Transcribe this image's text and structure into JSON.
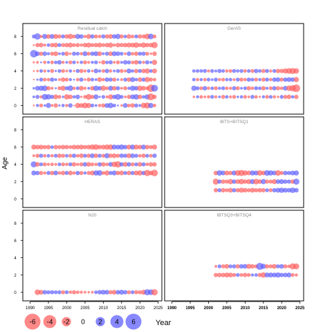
{
  "chart_data": {
    "type": "scatter",
    "ylabel": "Age",
    "xlabel": "Year",
    "xlim": [
      1988,
      2026
    ],
    "ylim": [
      -1,
      9.5
    ],
    "x_ticks": [
      "1990",
      "1995",
      "2000",
      "2005",
      "2010",
      "2015",
      "2020",
      "2025"
    ],
    "y_ticks": [
      "0",
      "2",
      "4",
      "6",
      "8"
    ],
    "colors": {
      "positive": "#5a5aff",
      "negative": "#ff5a5a"
    },
    "legend": {
      "placement": "bottom-left",
      "items": [
        {
          "label": "-6",
          "value": -6
        },
        {
          "label": "-4",
          "value": -4
        },
        {
          "label": "-2",
          "value": -2
        },
        {
          "label": "0",
          "value": 0
        },
        {
          "label": "2",
          "value": 2
        },
        {
          "label": "4",
          "value": 4
        },
        {
          "label": "6",
          "value": 6
        }
      ]
    },
    "panels": [
      {
        "title": "Residual catch",
        "years": [
          1991,
          2024
        ],
        "ages": [
          0,
          1,
          2,
          3,
          4,
          5,
          6,
          7,
          8
        ],
        "residuals": {
          "0": [
            -0.3,
            0.8,
            -1.2,
            0.5,
            2.1,
            -0.6,
            -1.5,
            0.4,
            0.9,
            -0.8,
            1.6,
            -0.2,
            -2.2,
            -1.8,
            -2.6,
            -2.0,
            1.2,
            0.6,
            -0.9,
            -1.4,
            1.8,
            2.4,
            1.1,
            0.3,
            -0.5,
            1.9,
            -1.1,
            -1.6,
            1.3,
            0.7,
            -2.4,
            -3.0,
            2.2,
            -1.0
          ],
          "1": [
            0.6,
            1.3,
            -0.8,
            2.9,
            2.3,
            1.4,
            -1.9,
            -1.2,
            0.5,
            -2.3,
            -1.6,
            0.9,
            1.7,
            -0.4,
            -1.1,
            -2.6,
            -1.3,
            2.0,
            0.4,
            1.1,
            -0.7,
            -2.1,
            1.5,
            2.7,
            1.2,
            -0.6,
            -1.4,
            1.9,
            2.4,
            -1.7,
            1.0,
            2.1,
            -3.8,
            -1.5
          ],
          "2": [
            0.5,
            1.8,
            2.1,
            2.6,
            -1.4,
            -0.7,
            0.3,
            -1.2,
            -2.1,
            1.3,
            2.5,
            -0.9,
            1.1,
            -1.8,
            -0.8,
            0.6,
            -1.6,
            2.3,
            1.5,
            -2.2,
            -1.0,
            2.0,
            -1.7,
            1.4,
            -0.6,
            -1.3,
            0.8,
            2.2,
            1.7,
            -2.3,
            -1.8,
            -1.1,
            -4.4,
            3.8
          ],
          "3": [
            -0.2,
            0.4,
            1.2,
            -1.1,
            -0.9,
            1.5,
            0.7,
            -0.6,
            -1.6,
            -1.2,
            0.8,
            0.3,
            -1.0,
            1.4,
            -0.5,
            -1.3,
            1.1,
            0.6,
            -1.8,
            -0.9,
            1.6,
            1.3,
            -1.4,
            0.5,
            -0.7,
            1.2,
            -1.6,
            2.0,
            0.9,
            -1.7,
            1.4,
            -2.2,
            -1.3,
            -1.0
          ],
          "4": [
            -0.3,
            -0.5,
            1.0,
            -0.8,
            0.6,
            -1.3,
            0.4,
            1.1,
            -1.2,
            -0.6,
            0.9,
            -0.4,
            1.3,
            -1.4,
            -0.8,
            1.0,
            -0.5,
            1.7,
            0.8,
            -1.1,
            1.5,
            -0.9,
            0.6,
            1.2,
            -1.3,
            -0.7,
            1.9,
            0.9,
            -1.5,
            1.3,
            -1.6,
            -2.1,
            1.1,
            -1.9
          ],
          "5": [
            -0.4,
            -0.6,
            0.3,
            -0.9,
            0.7,
            -1.1,
            1.0,
            1.6,
            -0.8,
            0.6,
            -1.2,
            1.1,
            -0.5,
            0.9,
            -1.3,
            -0.7,
            0.8,
            1.2,
            -0.4,
            -1.5,
            1.0,
            1.4,
            -0.6,
            -1.2,
            0.7,
            1.6,
            1.3,
            -1.0,
            -1.7,
            1.1,
            -0.8,
            1.4,
            0.6,
            -2.2
          ],
          "6": [
            4.4,
            1.8,
            -1.4,
            1.6,
            0.8,
            -1.3,
            -1.8,
            0.6,
            1.2,
            -1.6,
            -0.5,
            1.4,
            1.2,
            -0.9,
            1.9,
            -1.2,
            1.5,
            1.9,
            -1.8,
            0.7,
            1.3,
            -1.7,
            1.9,
            1.6,
            1.2,
            -0.6,
            1.6,
            -1.0,
            -1.5,
            1.3,
            1.4,
            -1.2,
            -0.5,
            -1.6
          ],
          "7": [
            -0.3,
            -1.4,
            -1.7,
            -0.7,
            1.0,
            -1.5,
            -1.8,
            1.2,
            -1.3,
            -1.6,
            -2.0,
            -1.1,
            -1.4,
            -0.9,
            -1.7,
            -2.0,
            -1.3,
            -1.5,
            -1.9,
            -1.2,
            -1.6,
            -2.1,
            -0.8,
            -1.7,
            -1.4,
            -1.6,
            -1.9,
            -1.8,
            -2.4,
            -1.3,
            -2.3,
            -1.5,
            -1.7,
            -3.2
          ],
          "8": [
            1.2,
            3.2,
            -0.8,
            2.1,
            -1.7,
            1.8,
            -1.9,
            -1.4,
            1.3,
            -1.6,
            -2.2,
            -1.2,
            2.1,
            1.6,
            -0.8,
            -1.9,
            1.5,
            -1.3,
            -1.0,
            1.4,
            -1.5,
            -1.8,
            1.6,
            2.2,
            -1.4,
            1.0,
            -1.7,
            -1.1,
            1.2,
            -1.5,
            -1.3,
            -2.6,
            2.5,
            -1.2
          ]
        }
      },
      {
        "title": "GerAS",
        "years": [
          1996,
          2024
        ],
        "ages": [
          1,
          2,
          3,
          4
        ],
        "residuals": {
          "1": [
            -0.5,
            0.8,
            -1.0,
            -0.6,
            -0.9,
            1.2,
            -0.8,
            0.6,
            -1.3,
            1.0,
            -0.7,
            -1.2,
            0.5,
            0.9,
            -1.1,
            -0.6,
            1.3,
            -1.0,
            -0.4,
            0.8,
            -1.2,
            1.1,
            -0.9,
            -0.5,
            1.2,
            -1.3,
            -1.6,
            0.9,
            -1.5
          ],
          "2": [
            2.2,
            1.3,
            -1.1,
            1.6,
            -0.9,
            1.0,
            -1.3,
            0.8,
            1.2,
            -1.0,
            -0.8,
            1.4,
            -1.3,
            0.6,
            1.1,
            -1.5,
            -0.9,
            1.3,
            1.0,
            -1.6,
            0.7,
            -1.2,
            1.5,
            -1.4,
            -1.0,
            1.8,
            -2.4,
            -3.2,
            -4.6
          ],
          "3": [
            1.0,
            -0.9,
            0.8,
            -1.0,
            1.1,
            0.6,
            1.3,
            -0.8,
            -1.1,
            0.9,
            1.0,
            -0.7,
            1.2,
            -1.3,
            -0.9,
            1.4,
            1.1,
            -1.2,
            0.8,
            -1.4,
            1.3,
            -0.9,
            1.6,
            1.7,
            -1.3,
            1.5,
            1.8,
            1.6,
            -2.2
          ],
          "4": [
            0.9,
            1.1,
            1.0,
            1.3,
            -0.8,
            1.2,
            0.7,
            1.4,
            1.0,
            -0.9,
            -1.1,
            1.3,
            0.9,
            1.2,
            -1.0,
            1.1,
            -1.2,
            1.5,
            1.0,
            -1.4,
            1.3,
            -0.8,
            1.2,
            -1.6,
            -1.5,
            -2.2,
            -2.6,
            -3.0,
            -2.4
          ]
        }
      },
      {
        "title": "HERAS",
        "years": [
          1991,
          2024
        ],
        "ages": [
          3,
          4,
          5,
          6
        ],
        "residuals": {
          "3": [
            2.0,
            1.5,
            -1.4,
            -0.8,
            1.3,
            -1.5,
            1.8,
            -1.0,
            -1.6,
            1.3,
            -1.7,
            -0.9,
            1.5,
            -1.4,
            0.8,
            -1.3,
            -1.9,
            2.2,
            2.5,
            -1.1,
            -2.1,
            1.3,
            2.0,
            -1.5,
            -1.8,
            1.2,
            -1.6,
            1.4,
            -1.9,
            -2.2,
            1.5,
            -3.2,
            -1.7,
            -3.5
          ],
          "4": [
            3.0,
            -1.7,
            1.2,
            -1.3,
            -0.8,
            -1.0,
            -0.7,
            1.1,
            -1.2,
            -0.9,
            1.3,
            -1.6,
            -0.8,
            -1.4,
            1.6,
            -1.8,
            -1.2,
            -0.9,
            1.5,
            -1.6,
            -1.0,
            1.8,
            -2.4,
            -3.2,
            1.5,
            -1.9,
            1.6,
            -1.3,
            1.2,
            -1.8,
            1.4,
            -1.0,
            -1.6,
            -1.5
          ],
          "5": [
            -0.6,
            -1.3,
            1.4,
            -1.0,
            1.0,
            -0.9,
            1.2,
            -1.5,
            -1.3,
            1.0,
            -1.2,
            1.5,
            -1.0,
            -1.7,
            1.2,
            -1.4,
            1.8,
            -1.6,
            1.3,
            -1.2,
            2.2,
            -1.5,
            -1.8,
            -1.3,
            1.6,
            1.4,
            -1.9,
            1.8,
            1.3,
            -1.0,
            -1.5,
            1.2,
            -1.1,
            1.5
          ],
          "6": [
            -2.0,
            -1.7,
            -1.8,
            -1.4,
            -1.6,
            1.0,
            -1.5,
            -1.3,
            -1.7,
            -1.5,
            -1.2,
            -1.8,
            -1.6,
            -1.9,
            -1.4,
            -1.7,
            -2.3,
            -2.5,
            -1.6,
            -1.8,
            -2.2,
            -2.4,
            2.0,
            1.8,
            2.3,
            1.6,
            -1.9,
            2.1,
            -2.0,
            -1.7,
            2.0,
            -1.6,
            -1.3,
            -2.0
          ]
        }
      },
      {
        "title": "IBTS+BITSQ1",
        "years": [
          2002,
          2024
        ],
        "ages": [
          1,
          2,
          3
        ],
        "residuals": {
          "1": [
            -1.5,
            1.3,
            -1.6,
            -1.2,
            -1.8,
            1.4,
            -1.5,
            -2.0,
            -1.7,
            -1.3,
            -1.9,
            -1.4,
            -1.6,
            -1.5,
            1.2,
            -1.3,
            1.5,
            1.9,
            2.2,
            1.8,
            1.6,
            2.4,
            1.7
          ],
          "2": [
            -3.0,
            1.4,
            -1.6,
            -1.3,
            -2.2,
            1.6,
            -1.8,
            -2.4,
            -1.5,
            -2.1,
            2.0,
            -2.6,
            -1.7,
            2.2,
            -1.4,
            -1.3,
            -2.1,
            1.7,
            1.9,
            1.5,
            1.4,
            -1.6,
            3.0
          ],
          "3": [
            -1.6,
            2.4,
            1.8,
            -1.9,
            -1.5,
            2.0,
            -2.6,
            -3.0,
            -2.2,
            -1.8,
            2.1,
            1.9,
            -2.4,
            -1.7,
            2.6,
            2.2,
            1.8,
            -2.5,
            -1.3,
            1.6,
            1.4,
            1.9,
            2.1
          ]
        }
      },
      {
        "title": "N20",
        "years": [
          1992,
          2024
        ],
        "ages": [
          0
        ],
        "residuals": {
          "0": [
            -2.5,
            -1.8,
            1.6,
            1.3,
            1.4,
            1.2,
            1.3,
            -1.3,
            1.2,
            -0.9,
            -1.4,
            -1.0,
            -0.8,
            -0.6,
            -0.5,
            -0.6,
            1.1,
            1.6,
            1.9,
            1.7,
            -1.4,
            -1.8,
            1.6,
            2.0,
            1.5,
            -1.3,
            1.2,
            -1.4,
            -1.3,
            -2.0,
            3.0,
            2.6,
            -3.2
          ]
        }
      },
      {
        "title": "IBTSQ3+BITSQ4",
        "years": [
          2002,
          2024
        ],
        "ages": [
          2,
          3
        ],
        "residuals": {
          "2": [
            -1.4,
            -1.6,
            -1.5,
            -2.0,
            -1.8,
            -1.3,
            1.2,
            -1.1,
            -1.5,
            -1.2,
            0.8,
            1.0,
            -1.4,
            -2.4,
            1.9,
            2.0,
            1.8,
            2.2,
            1.5,
            1.7,
            1.9,
            -1.2,
            -0.8
          ],
          "3": [
            -0.6,
            1.2,
            -1.3,
            -1.8,
            1.2,
            1.4,
            -1.5,
            1.6,
            1.8,
            -2.0,
            -1.6,
            -1.2,
            4.0,
            2.2,
            -1.5,
            -1.3,
            -1.9,
            1.3,
            1.7,
            -1.4,
            -1.0,
            -3.0,
            -2.8
          ]
        }
      }
    ]
  }
}
